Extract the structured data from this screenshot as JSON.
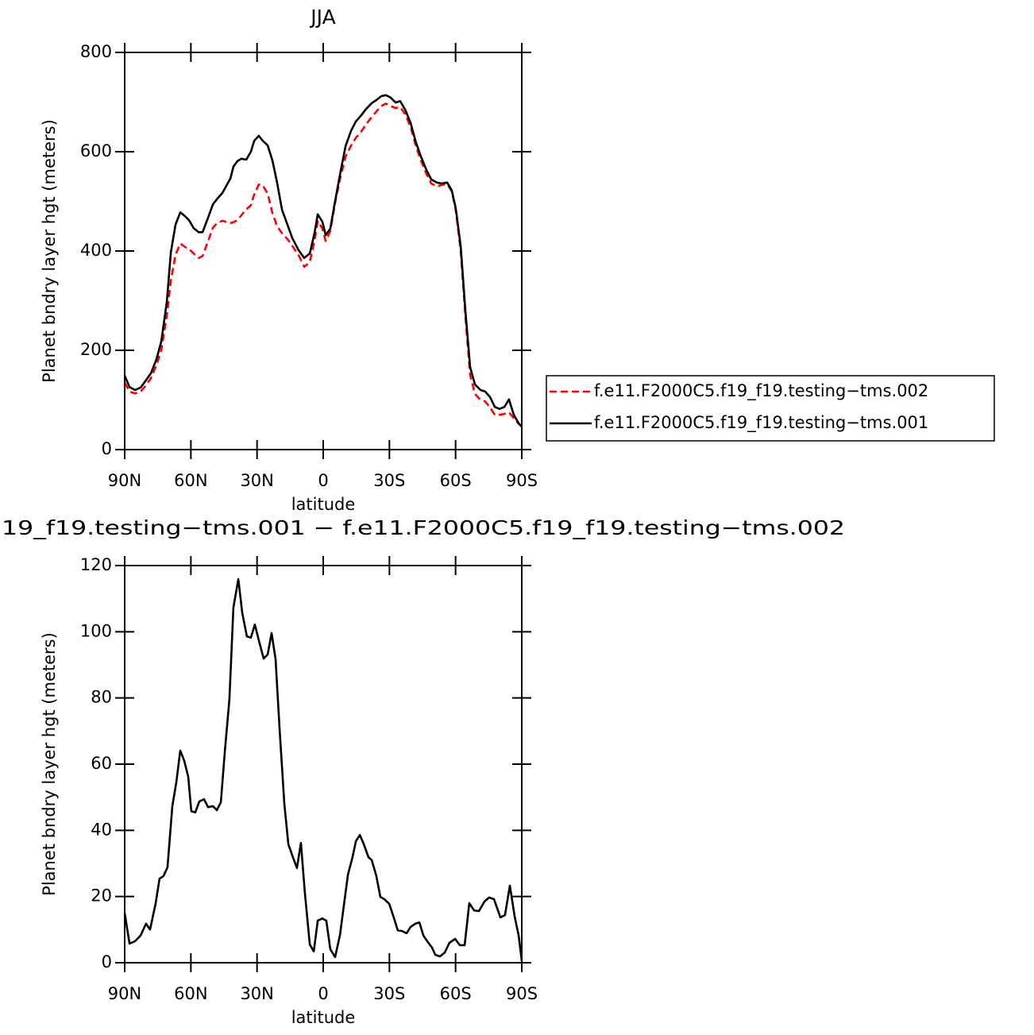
{
  "chart_data": [
    {
      "type": "line",
      "title": "JJA",
      "xlabel": "latitude",
      "ylabel": "Planet bndry layer hgt (meters)",
      "x": [
        90,
        87.8,
        85.3,
        82.8,
        80.6,
        78.1,
        75.6,
        73.4,
        70.9,
        69.1,
        66.96,
        64.8,
        62.6,
        60.8,
        58.7,
        56.5,
        54.7,
        52.2,
        50,
        47.9,
        45.7,
        43.6,
        42.1,
        40.7,
        38.9,
        37.1,
        34.9,
        32.8,
        31.3,
        29.2,
        27.4,
        25.2,
        23,
        20.9,
        18.7,
        16.2,
        14,
        11.2,
        8.6,
        6.1,
        4,
        2.5,
        0.4,
        -1.1,
        -3.2,
        -5.4,
        -7.6,
        -10.1,
        -12.6,
        -14.8,
        -17.3,
        -19.4,
        -22,
        -24.1,
        -26.3,
        -28.4,
        -30.6,
        -32.8,
        -34.9,
        -37.1,
        -39.6,
        -42.1,
        -44.3,
        -46.8,
        -49,
        -51.5,
        -53.6,
        -56.2,
        -58.3,
        -60.1,
        -62.3,
        -64.4,
        -66.6,
        -68.8,
        -71.3,
        -73.4,
        -75.6,
        -77.8,
        -79.9,
        -82.1,
        -84.2,
        -86.4,
        -88.6,
        -90
      ],
      "series": [
        {
          "name": "f.e11.F2000C5.f19_f19.testing−tms.002",
          "color": "#ff0000",
          "dashed": true,
          "values": [
            135,
            117,
            113,
            117,
            128,
            144,
            170,
            200,
            270,
            340,
            392,
            415,
            408,
            404,
            395,
            386,
            390,
            420,
            447,
            457,
            461,
            458,
            456,
            458,
            462,
            472,
            484,
            492,
            514,
            534,
            532,
            516,
            476,
            450,
            436,
            424,
            410,
            392,
            368,
            378,
            420,
            460,
            446,
            420,
            440,
            497,
            545,
            590,
            612,
            628,
            641,
            655,
            670,
            681,
            692,
            697,
            692,
            688,
            690,
            676,
            650,
            610,
            582,
            555,
            536,
            530,
            533,
            535,
            520,
            482,
            400,
            270,
            150,
            112,
            100,
            97,
            85,
            70,
            70,
            72,
            75,
            63,
            52,
            47
          ]
        },
        {
          "name": "f.e11.F2000C5.f19_f19.testing−tms.001",
          "color": "#000000",
          "dashed": false,
          "values": [
            149,
            126,
            120,
            125,
            138,
            154,
            182,
            218,
            298,
            397,
            453,
            478,
            470,
            462,
            446,
            438,
            438,
            467,
            494,
            506,
            517,
            534,
            546,
            570,
            581,
            586,
            584,
            600,
            622,
            632,
            622,
            613,
            582,
            538,
            483,
            453,
            426,
            402,
            386,
            395,
            435,
            474,
            459,
            432,
            445,
            501,
            554,
            611,
            642,
            661,
            674,
            686,
            698,
            704,
            712,
            714,
            709,
            699,
            702,
            685,
            658,
            618,
            590,
            563,
            544,
            538,
            536,
            538,
            522,
            486,
            410,
            282,
            166,
            131,
            120,
            117,
            106,
            86,
            82,
            86,
            101,
            70,
            53,
            46
          ]
        }
      ],
      "xlim": [
        90,
        -90
      ],
      "xticks": [
        {
          "value": 90,
          "label": "90N"
        },
        {
          "value": 60,
          "label": "60N"
        },
        {
          "value": 30,
          "label": "30N"
        },
        0,
        {
          "value": -30,
          "label": "30S"
        },
        {
          "value": -60,
          "label": "60S"
        },
        {
          "value": -90,
          "label": "90S"
        }
      ],
      "ylim": [
        0,
        800
      ],
      "yticks": [
        0,
        200,
        400,
        600,
        800
      ],
      "legend": "right"
    },
    {
      "type": "line",
      "title": "19_f19.testing−tms.001 − f.e11.F2000C5.f19_f19.testing−tms.002",
      "xlabel": "latitude",
      "ylabel": "Planet bndry layer hgt (meters)",
      "x": [
        90,
        87.8,
        85.3,
        82.8,
        80.3,
        78.5,
        76,
        74.2,
        72.4,
        70.6,
        68.4,
        66.6,
        64.8,
        63,
        61.2,
        59.8,
        58,
        56.2,
        54,
        52.2,
        50,
        48.2,
        46.4,
        44.6,
        42.5,
        40.7,
        38.5,
        36.7,
        34.6,
        32.8,
        31,
        29.2,
        27,
        25.2,
        23.4,
        21.6,
        19.8,
        17.6,
        15.8,
        14,
        11.9,
        10.1,
        8.3,
        6.1,
        4.3,
        2.5,
        0.4,
        -1.4,
        -3.2,
        -5.4,
        -7.6,
        -9.4,
        -11.2,
        -13.3,
        -14.8,
        -16.6,
        -18.4,
        -20.5,
        -22,
        -24.1,
        -25.9,
        -27.7,
        -29.9,
        -31.7,
        -33.8,
        -35.6,
        -37.8,
        -39.6,
        -41.8,
        -43.6,
        -45.4,
        -47.5,
        -49.3,
        -50.8,
        -52.9,
        -55.1,
        -57.2,
        -59.8,
        -61.9,
        -64.1,
        -66.2,
        -68.4,
        -70.6,
        -73.1,
        -75.2,
        -77.4,
        -80.3,
        -82.4,
        -84.6,
        -86.8,
        -88.6,
        -90
      ],
      "series": [
        {
          "color": "#000000",
          "dashed": false,
          "values": [
            15,
            5.8,
            6.5,
            8.2,
            11.8,
            10,
            17.8,
            25.4,
            26.2,
            28.8,
            47.3,
            54.5,
            64.1,
            61,
            56.2,
            45.8,
            45.4,
            48.7,
            49.4,
            47,
            47.3,
            46.1,
            48.5,
            63.8,
            79.7,
            107.3,
            115.9,
            105.6,
            98.6,
            98.2,
            102.2,
            97.4,
            91.9,
            93.1,
            99.6,
            91.7,
            70.8,
            47.8,
            35.8,
            32.4,
            28.6,
            36.2,
            21.1,
            5.5,
            3.4,
            12.7,
            13.4,
            12.7,
            4.1,
            1.7,
            8.4,
            17.5,
            26.6,
            31.9,
            36.7,
            38.6,
            35.8,
            31.9,
            31,
            26.2,
            19.9,
            19.2,
            17.8,
            14.2,
            9.8,
            9.6,
            8.9,
            10.8,
            11.8,
            12.2,
            8.2,
            6.2,
            4.6,
            2.4,
            1.9,
            3.1,
            6,
            7.2,
            5.3,
            5.3,
            18,
            15.8,
            15.6,
            18.5,
            19.7,
            19.2,
            13.7,
            14.4,
            23.3,
            13.9,
            8.2,
            0.5
          ]
        }
      ],
      "xlim": [
        90,
        -90
      ],
      "xticks": [
        {
          "value": 90,
          "label": "90N"
        },
        {
          "value": 60,
          "label": "60N"
        },
        {
          "value": 30,
          "label": "30N"
        },
        0,
        {
          "value": -30,
          "label": "30S"
        },
        {
          "value": -60,
          "label": "60S"
        },
        {
          "value": -90,
          "label": "90S"
        }
      ],
      "ylim": [
        0,
        120
      ],
      "yticks": [
        0,
        20,
        40,
        60,
        80,
        100,
        120
      ]
    }
  ]
}
